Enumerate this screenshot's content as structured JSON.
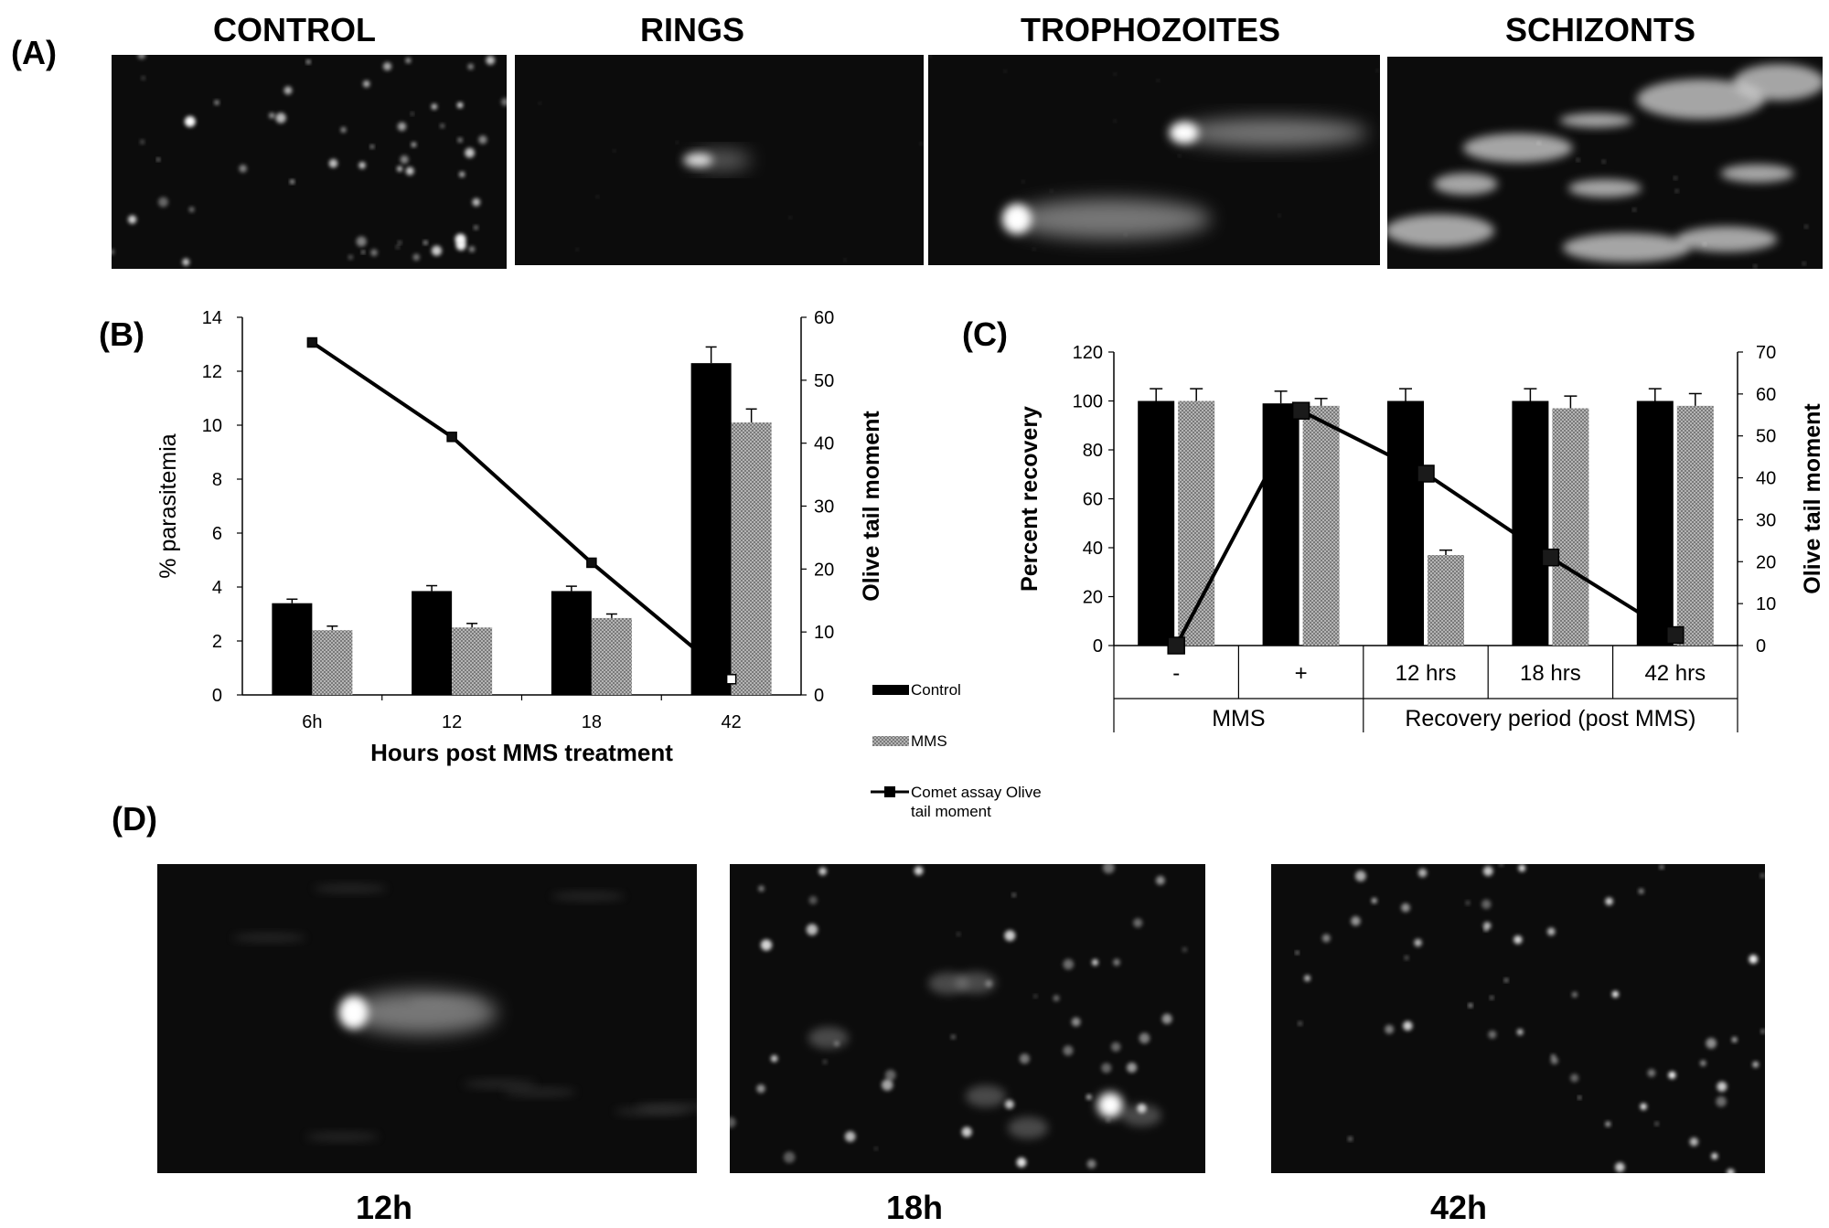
{
  "panels": {
    "A": {
      "label": "(A)",
      "images": [
        {
          "title": "CONTROL",
          "style": "dots"
        },
        {
          "title": "RINGS",
          "style": "single-faint"
        },
        {
          "title": "TROPHOZOITES",
          "style": "comets"
        },
        {
          "title": "SCHIZONTS",
          "style": "blobs"
        }
      ]
    },
    "D": {
      "label": "(D)",
      "images": [
        {
          "caption": "12h",
          "style": "comet-large"
        },
        {
          "caption": "18h",
          "style": "dots-mixed"
        },
        {
          "caption": "42h",
          "style": "dots"
        }
      ]
    }
  },
  "colors": {
    "control_bar": "#000000",
    "mms_bar": "#a8a8a8",
    "line": "#000000",
    "micrograph_bg": "#0c0c0c"
  },
  "legend": {
    "items": [
      "Control",
      "MMS",
      "Comet assay Olive tail moment"
    ],
    "placement": "right-of-panel-B"
  },
  "chart_data": [
    {
      "panel": "(B)",
      "type": "bar",
      "categories": [
        "6h",
        "12",
        "18",
        "42"
      ],
      "xlabel": "Hours post MMS treatment",
      "ylabel": "% parasitemia",
      "y2label": "Olive tail moment",
      "ylim": [
        0,
        14
      ],
      "yticks": [
        0,
        2,
        4,
        6,
        8,
        10,
        12,
        14
      ],
      "y2lim": [
        0,
        60
      ],
      "y2ticks": [
        0,
        10,
        20,
        30,
        40,
        50,
        60
      ],
      "series": [
        {
          "name": "Control",
          "kind": "bar",
          "values": [
            3.4,
            3.85,
            3.85,
            12.3
          ],
          "errors": [
            0.15,
            0.2,
            0.18,
            0.6
          ]
        },
        {
          "name": "MMS",
          "kind": "bar",
          "values": [
            2.4,
            2.5,
            2.85,
            10.1
          ],
          "errors": [
            0.15,
            0.15,
            0.15,
            0.5
          ]
        },
        {
          "name": "Comet assay Olive tail moment",
          "kind": "line",
          "axis": "right",
          "values": [
            56,
            41,
            21,
            2.5
          ]
        }
      ],
      "grid": false
    },
    {
      "panel": "(C)",
      "type": "bar",
      "categories": [
        "-",
        "+",
        "12 hrs",
        "18 hrs",
        "42 hrs"
      ],
      "groups": [
        "MMS",
        "Recovery period (post MMS)"
      ],
      "ylabel": "Percent recovery",
      "y2label": "Olive tail moment",
      "ylim": [
        0,
        120
      ],
      "yticks": [
        0,
        20,
        40,
        60,
        80,
        100,
        120
      ],
      "y2lim": [
        0,
        70
      ],
      "y2ticks": [
        0,
        10,
        20,
        30,
        40,
        50,
        60,
        70
      ],
      "series": [
        {
          "name": "Control",
          "kind": "bar",
          "values": [
            100,
            99,
            100,
            100,
            100
          ],
          "errors": [
            5,
            5,
            5,
            5,
            5
          ]
        },
        {
          "name": "MMS",
          "kind": "bar",
          "values": [
            100,
            98,
            37,
            97,
            98
          ],
          "errors": [
            5,
            3,
            2,
            5,
            5
          ]
        },
        {
          "name": "Olive tail moment",
          "kind": "line",
          "axis": "right",
          "values": [
            0,
            56,
            41,
            21,
            2.5
          ]
        }
      ],
      "grid": false
    }
  ]
}
